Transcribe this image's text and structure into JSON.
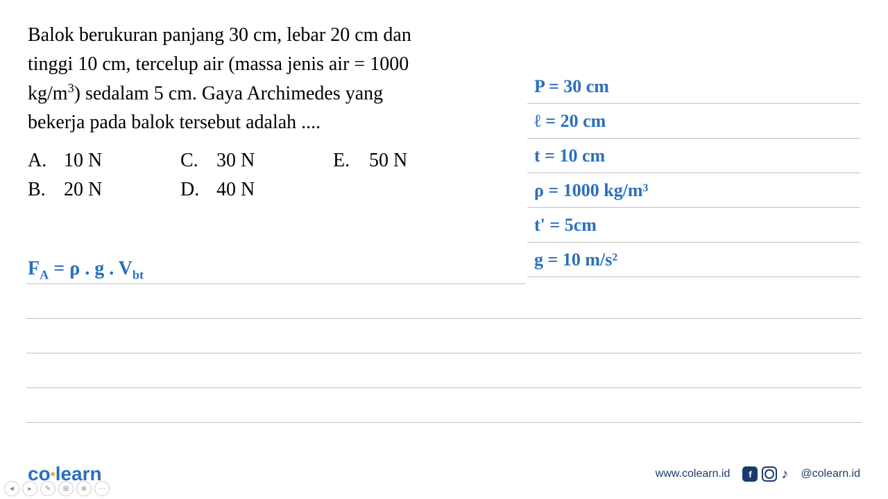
{
  "question": {
    "line1": "Balok berukuran panjang 30 cm, lebar 20 cm dan",
    "line2": "tinggi 10 cm, tercelup air (massa jenis air = 1000",
    "line3_part1": "kg/m",
    "line3_part2": ") sedalam 5 cm. Gaya Archimedes yang",
    "line4": "bekerja pada balok tersebut adalah ...."
  },
  "options": {
    "a": {
      "letter": "A.",
      "text": "10 N"
    },
    "b": {
      "letter": "B.",
      "text": "20 N"
    },
    "c": {
      "letter": "C.",
      "text": "30 N"
    },
    "d": {
      "letter": "D.",
      "text": "40 N"
    },
    "e": {
      "letter": "E.",
      "text": "50 N"
    }
  },
  "handwriting_right": {
    "l1": "P = 30 cm",
    "l2": "ℓ = 20 cm",
    "l3": "t = 10 cm",
    "l4": "ρ = 1000 kg/m³",
    "l5": "t' = 5cm",
    "l6": "g = 10 m/s²"
  },
  "handwriting_left": {
    "formula_html": "F<sub>A</sub> = ρ . g . V<sub>bt</sub>"
  },
  "footer": {
    "logo_co": "co",
    "logo_learn": "learn",
    "url": "www.colearn.id",
    "handle": "@colearn.id"
  },
  "colors": {
    "handwriting": "#2a6fbf",
    "rule": "#c0c0c0",
    "logo_blue": "#2a6fbf",
    "logo_orange": "#f5a623",
    "footer_text": "#1a3a6e"
  }
}
